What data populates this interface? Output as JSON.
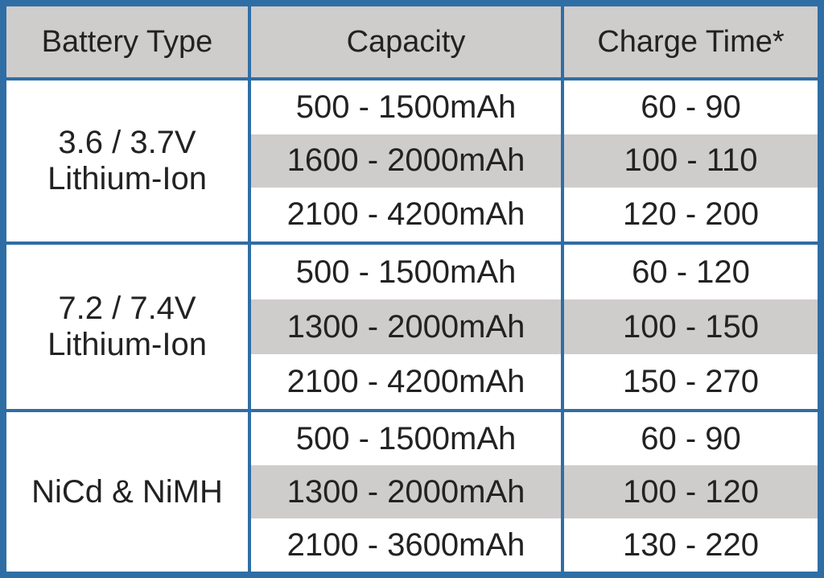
{
  "table": {
    "header": [
      "Battery Type",
      "Capacity",
      "Charge Time*"
    ],
    "groups": [
      {
        "type": [
          "3.6 / 3.7V",
          "Lithium-Ion"
        ],
        "rows": [
          [
            "500 - 1500mAh",
            "60 - 90"
          ],
          [
            "1600 - 2000mAh",
            "100 - 110"
          ],
          [
            "2100 - 4200mAh",
            "120 - 200"
          ]
        ]
      },
      {
        "type": [
          "7.2 / 7.4V",
          "Lithium-Ion"
        ],
        "rows": [
          [
            "500 - 1500mAh",
            "60 - 120"
          ],
          [
            "1300 - 2000mAh",
            "100 - 150"
          ],
          [
            "2100 - 4200mAh",
            "150 - 270"
          ]
        ]
      },
      {
        "type": [
          "NiCd & NiMH"
        ],
        "rows": [
          [
            "500 - 1500mAh",
            "60 - 90"
          ],
          [
            "1300 - 2000mAh",
            "100 - 120"
          ],
          [
            "2100 - 3600mAh",
            "130 - 220"
          ]
        ]
      }
    ]
  }
}
